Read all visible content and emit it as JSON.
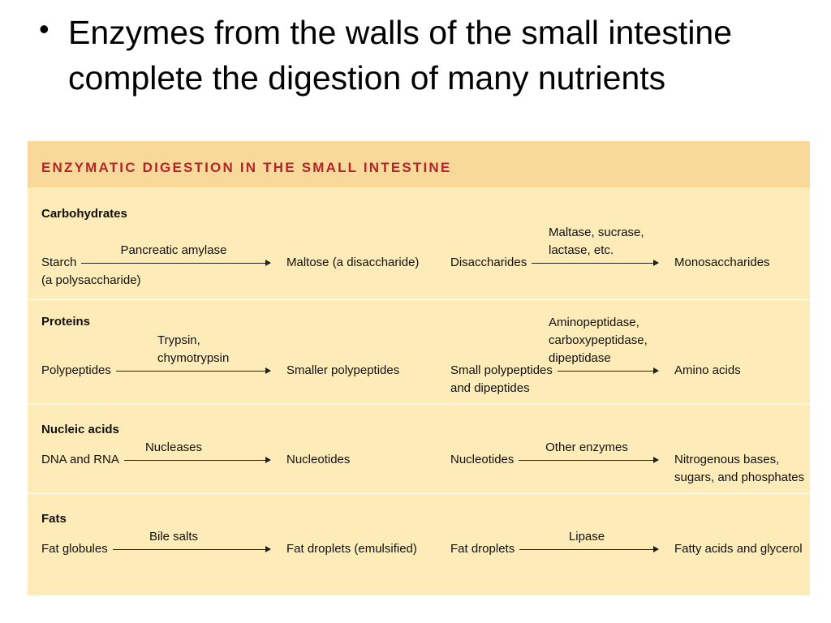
{
  "bullet": {
    "dot": "•",
    "text": "Enzymes from the walls of the small intestine complete the digestion of many nutrients"
  },
  "table": {
    "title": "ENZYMATIC DIGESTION IN THE SMALL INTESTINE",
    "sections": [
      {
        "name": "Carbohydrates",
        "left": {
          "substrate": [
            "Starch",
            "(a polysaccharide)"
          ],
          "enzyme": [
            "Pancreatic amylase"
          ],
          "product": [
            "Maltose (a disaccharide)"
          ]
        },
        "right": {
          "substrate": [
            "Disaccharides"
          ],
          "enzyme": [
            "Maltase, sucrase,",
            "lactase, etc."
          ],
          "product": [
            "Monosaccharides"
          ]
        }
      },
      {
        "name": "Proteins",
        "left": {
          "substrate": [
            "Polypeptides"
          ],
          "enzyme": [
            "Trypsin,",
            "chymotrypsin"
          ],
          "product": [
            "Smaller polypeptides"
          ]
        },
        "right": {
          "substrate": [
            "Small polypeptides",
            "and dipeptides"
          ],
          "enzyme": [
            "Aminopeptidase,",
            "carboxypeptidase,",
            "dipeptidase"
          ],
          "product": [
            "Amino acids"
          ]
        }
      },
      {
        "name": "Nucleic acids",
        "left": {
          "substrate": [
            "DNA and RNA"
          ],
          "enzyme": [
            "Nucleases"
          ],
          "product": [
            "Nucleotides"
          ]
        },
        "right": {
          "substrate": [
            "Nucleotides"
          ],
          "enzyme": [
            "Other enzymes"
          ],
          "product": [
            "Nitrogenous bases,",
            "sugars, and phosphates"
          ]
        }
      },
      {
        "name": "Fats",
        "left": {
          "substrate": [
            "Fat globules"
          ],
          "enzyme": [
            "Bile salts"
          ],
          "product": [
            "Fat droplets (emulsified)"
          ]
        },
        "right": {
          "substrate": [
            "Fat droplets"
          ],
          "enzyme": [
            "Lipase"
          ],
          "product": [
            "Fatty acids and glycerol"
          ]
        }
      }
    ]
  },
  "colors": {
    "panel_bg": "#fdebb8",
    "header_bg": "#f9d99a",
    "title_text": "#b3242b",
    "divider": "#fff7e6"
  }
}
